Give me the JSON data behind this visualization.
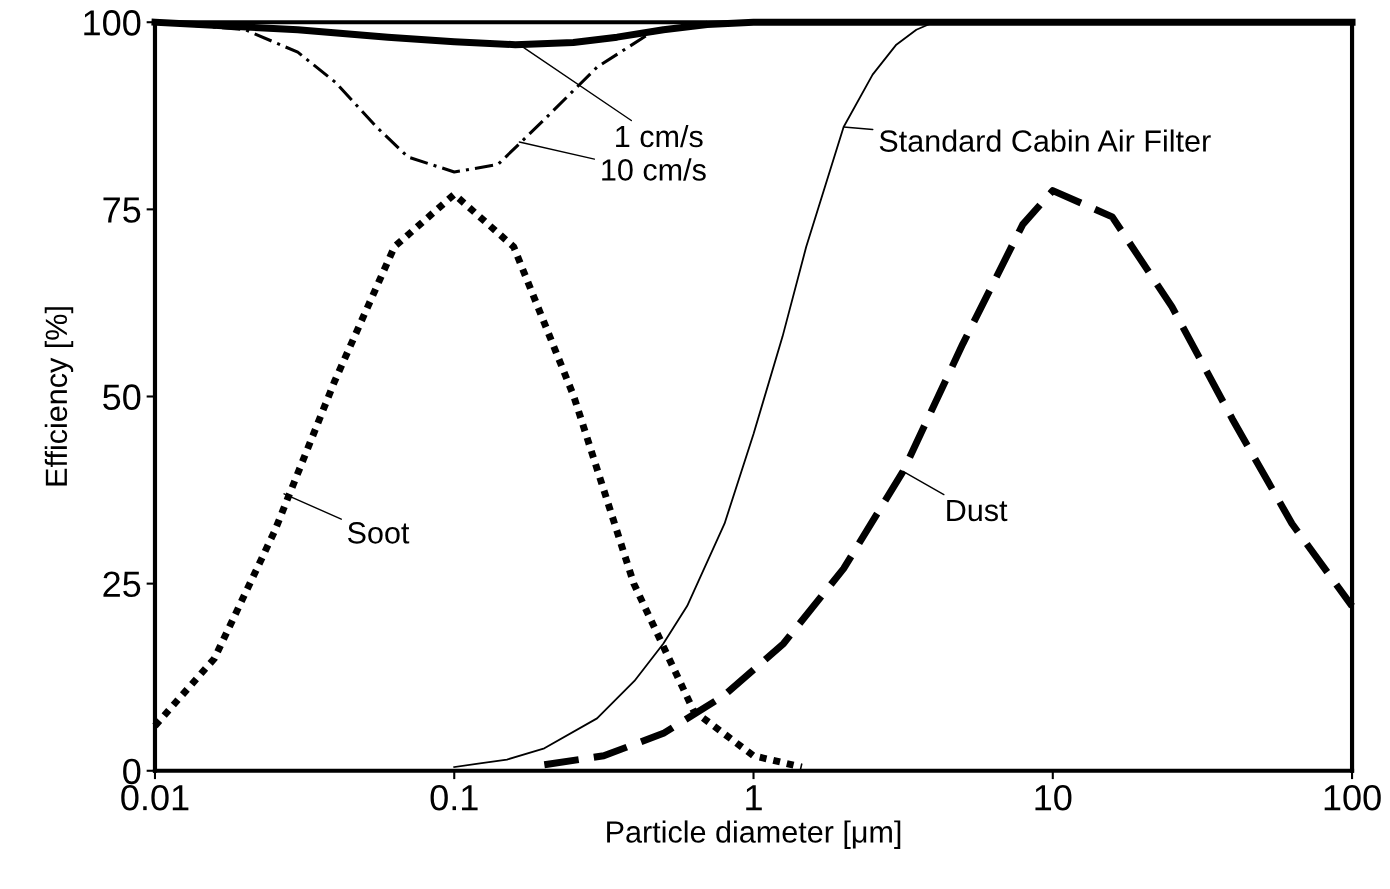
{
  "chart_data": {
    "type": "line",
    "xlabel": "Particle diameter [μm]",
    "ylabel": "Efficiency [%]",
    "log": "x",
    "xlim": [
      0.01,
      100
    ],
    "ylim": [
      0,
      100
    ],
    "xticks": [
      0.01,
      0.1,
      1,
      10,
      100
    ],
    "yticks": [
      0,
      25,
      50,
      75,
      100
    ],
    "grid": false,
    "legend": false,
    "marker": "none",
    "series": [
      {
        "color": "#000000",
        "line_style": "solid",
        "x": [
          0.01,
          0.03,
          0.06,
          0.1,
          0.16,
          0.25,
          0.35,
          0.5,
          0.7,
          1,
          100
        ],
        "values": [
          100,
          99,
          98,
          97.4,
          97,
          97.3,
          98,
          99,
          99.7,
          100,
          100
        ]
      },
      {
        "color": "#000000",
        "line_style": "dashdot",
        "x": [
          0.01,
          0.02,
          0.03,
          0.04,
          0.055,
          0.07,
          0.1,
          0.14,
          0.2,
          0.3,
          0.45,
          0.7
        ],
        "values": [
          100,
          99,
          96,
          92,
          86,
          82,
          80,
          81,
          87,
          94,
          98.5,
          100
        ]
      },
      {
        "color": "#000000",
        "line_style": "solid",
        "x": [
          0.1,
          0.15,
          0.2,
          0.3,
          0.4,
          0.5,
          0.6,
          0.8,
          1,
          1.25,
          1.5,
          2,
          2.5,
          3,
          3.5,
          4,
          10,
          100
        ],
        "values": [
          0.5,
          1.5,
          3,
          7,
          12,
          17,
          22,
          33,
          45,
          58,
          70,
          86,
          93,
          97,
          99,
          100,
          100,
          100
        ]
      },
      {
        "color": "#000000",
        "line_style": "dotted",
        "x": [
          0.01,
          0.0158,
          0.0251,
          0.0398,
          0.0631,
          0.1,
          0.158,
          0.251,
          0.398,
          0.631,
          1,
          1.45
        ],
        "values": [
          6,
          15,
          32,
          52,
          70,
          77,
          70,
          50,
          25,
          8,
          2,
          0.5
        ]
      },
      {
        "color": "#000000",
        "line_style": "dashed",
        "x": [
          0.2,
          0.316,
          0.5,
          0.794,
          1.26,
          2,
          3.16,
          5,
          7.94,
          10,
          15.8,
          25,
          39.8,
          63,
          100
        ],
        "values": [
          0.8,
          2,
          5,
          10,
          17,
          27,
          40,
          57,
          73,
          77.5,
          74,
          62,
          47,
          33,
          22
        ]
      }
    ],
    "annotations": [
      {
        "text": "1 cm/s",
        "x": 0.165,
        "y": 97
      },
      {
        "text": "10 cm/s",
        "x": 0.165,
        "y": 84
      },
      {
        "text": "Standard Cabin Air Filter",
        "x": 2,
        "y": 86
      },
      {
        "text": "Soot",
        "x": 0.027,
        "y": 37
      },
      {
        "text": "Dust",
        "x": 3.16,
        "y": 40
      }
    ]
  }
}
